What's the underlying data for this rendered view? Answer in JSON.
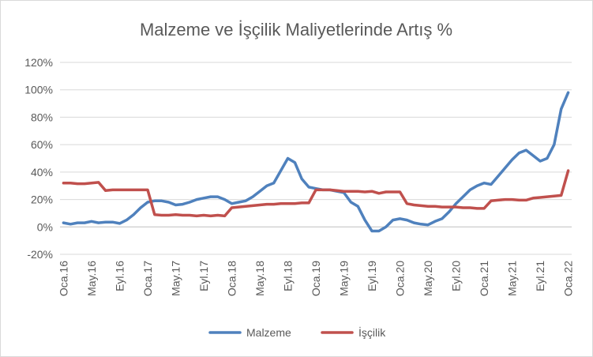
{
  "chart_data": {
    "type": "line",
    "title": "Malzeme ve İşçilik Maliyetlerinde Artış %",
    "xlabel": "",
    "ylabel": "",
    "ylim": [
      -20,
      120
    ],
    "yticks": [
      -20,
      0,
      20,
      40,
      60,
      80,
      100,
      120
    ],
    "ytick_labels": [
      "-20%",
      "0%",
      "20%",
      "40%",
      "60%",
      "80%",
      "100%",
      "120%"
    ],
    "x": [
      "Oca.16",
      "Şub.16",
      "Mar.16",
      "Nis.16",
      "May.16",
      "Haz.16",
      "Tem.16",
      "Ağu.16",
      "Eyl.16",
      "Eki.16",
      "Kas.16",
      "Ara.16",
      "Oca.17",
      "Şub.17",
      "Mar.17",
      "Nis.17",
      "May.17",
      "Haz.17",
      "Tem.17",
      "Ağu.17",
      "Eyl.17",
      "Eki.17",
      "Kas.17",
      "Ara.17",
      "Oca.18",
      "Şub.18",
      "Mar.18",
      "Nis.18",
      "May.18",
      "Haz.18",
      "Tem.18",
      "Ağu.18",
      "Eyl.18",
      "Eki.18",
      "Kas.18",
      "Ara.18",
      "Oca.19",
      "Şub.19",
      "Mar.19",
      "Nis.19",
      "May.19",
      "Haz.19",
      "Tem.19",
      "Ağu.19",
      "Eyl.19",
      "Eki.19",
      "Kas.19",
      "Ara.19",
      "Oca.20",
      "Şub.20",
      "Mar.20",
      "Nis.20",
      "May.20",
      "Haz.20",
      "Tem.20",
      "Ağu.20",
      "Eyl.20",
      "Eki.20",
      "Kas.20",
      "Ara.20",
      "Oca.21",
      "Şub.21",
      "Mar.21",
      "Nis.21",
      "May.21",
      "Haz.21",
      "Tem.21",
      "Ağu.21",
      "Eyl.21",
      "Eki.21",
      "Kas.21",
      "Ara.21",
      "Oca.22"
    ],
    "x_tick_labels": [
      "Oca.16",
      "May.16",
      "Eyl.16",
      "Oca.17",
      "May.17",
      "Eyl.17",
      "Oca.18",
      "May.18",
      "Eyl.18",
      "Oca.19",
      "May.19",
      "Eyl.19",
      "Oca.20",
      "May.20",
      "Eyl.20",
      "Oca.21",
      "May.21",
      "Eyl.21",
      "Oca.22"
    ],
    "grid": true,
    "legend_position": "bottom",
    "series": [
      {
        "name": "Malzeme",
        "color": "#4f81bd",
        "values": [
          3,
          2,
          3,
          3,
          4,
          3,
          3.5,
          3.5,
          2.5,
          5,
          9,
          14,
          18,
          19,
          19,
          18,
          16,
          16.5,
          18,
          20,
          21,
          22,
          22,
          20,
          17,
          18,
          19,
          22,
          26,
          30,
          32,
          41,
          50,
          47,
          35,
          29,
          28,
          27,
          27,
          26,
          25,
          18,
          15,
          5,
          -3,
          -3,
          0,
          5,
          6,
          5,
          3,
          2,
          1.5,
          4,
          6,
          11,
          17,
          22,
          27,
          30,
          32,
          31,
          37,
          43,
          49,
          54,
          56,
          52,
          48,
          50,
          60,
          86,
          98
        ]
      },
      {
        "name": "İşçilik",
        "color": "#c0504d",
        "values": [
          32,
          32,
          31.5,
          31.5,
          32,
          32.5,
          26.5,
          27,
          27,
          27,
          27,
          27,
          27,
          9,
          8.5,
          8.5,
          9,
          8.5,
          8.5,
          8,
          8.5,
          8,
          8.5,
          8,
          14,
          14.5,
          15,
          15.5,
          16,
          16.5,
          16.5,
          17,
          17,
          17,
          17.5,
          17.5,
          27,
          27,
          27,
          26.5,
          26,
          26,
          26,
          25.5,
          26,
          24.5,
          25.5,
          25.5,
          25.5,
          17,
          16,
          15.5,
          15,
          15,
          14.5,
          14.5,
          14.5,
          14,
          14,
          13.5,
          13.5,
          19,
          19.5,
          20,
          20,
          19.5,
          19.5,
          21,
          21.5,
          22,
          22.5,
          23,
          41
        ]
      }
    ]
  }
}
